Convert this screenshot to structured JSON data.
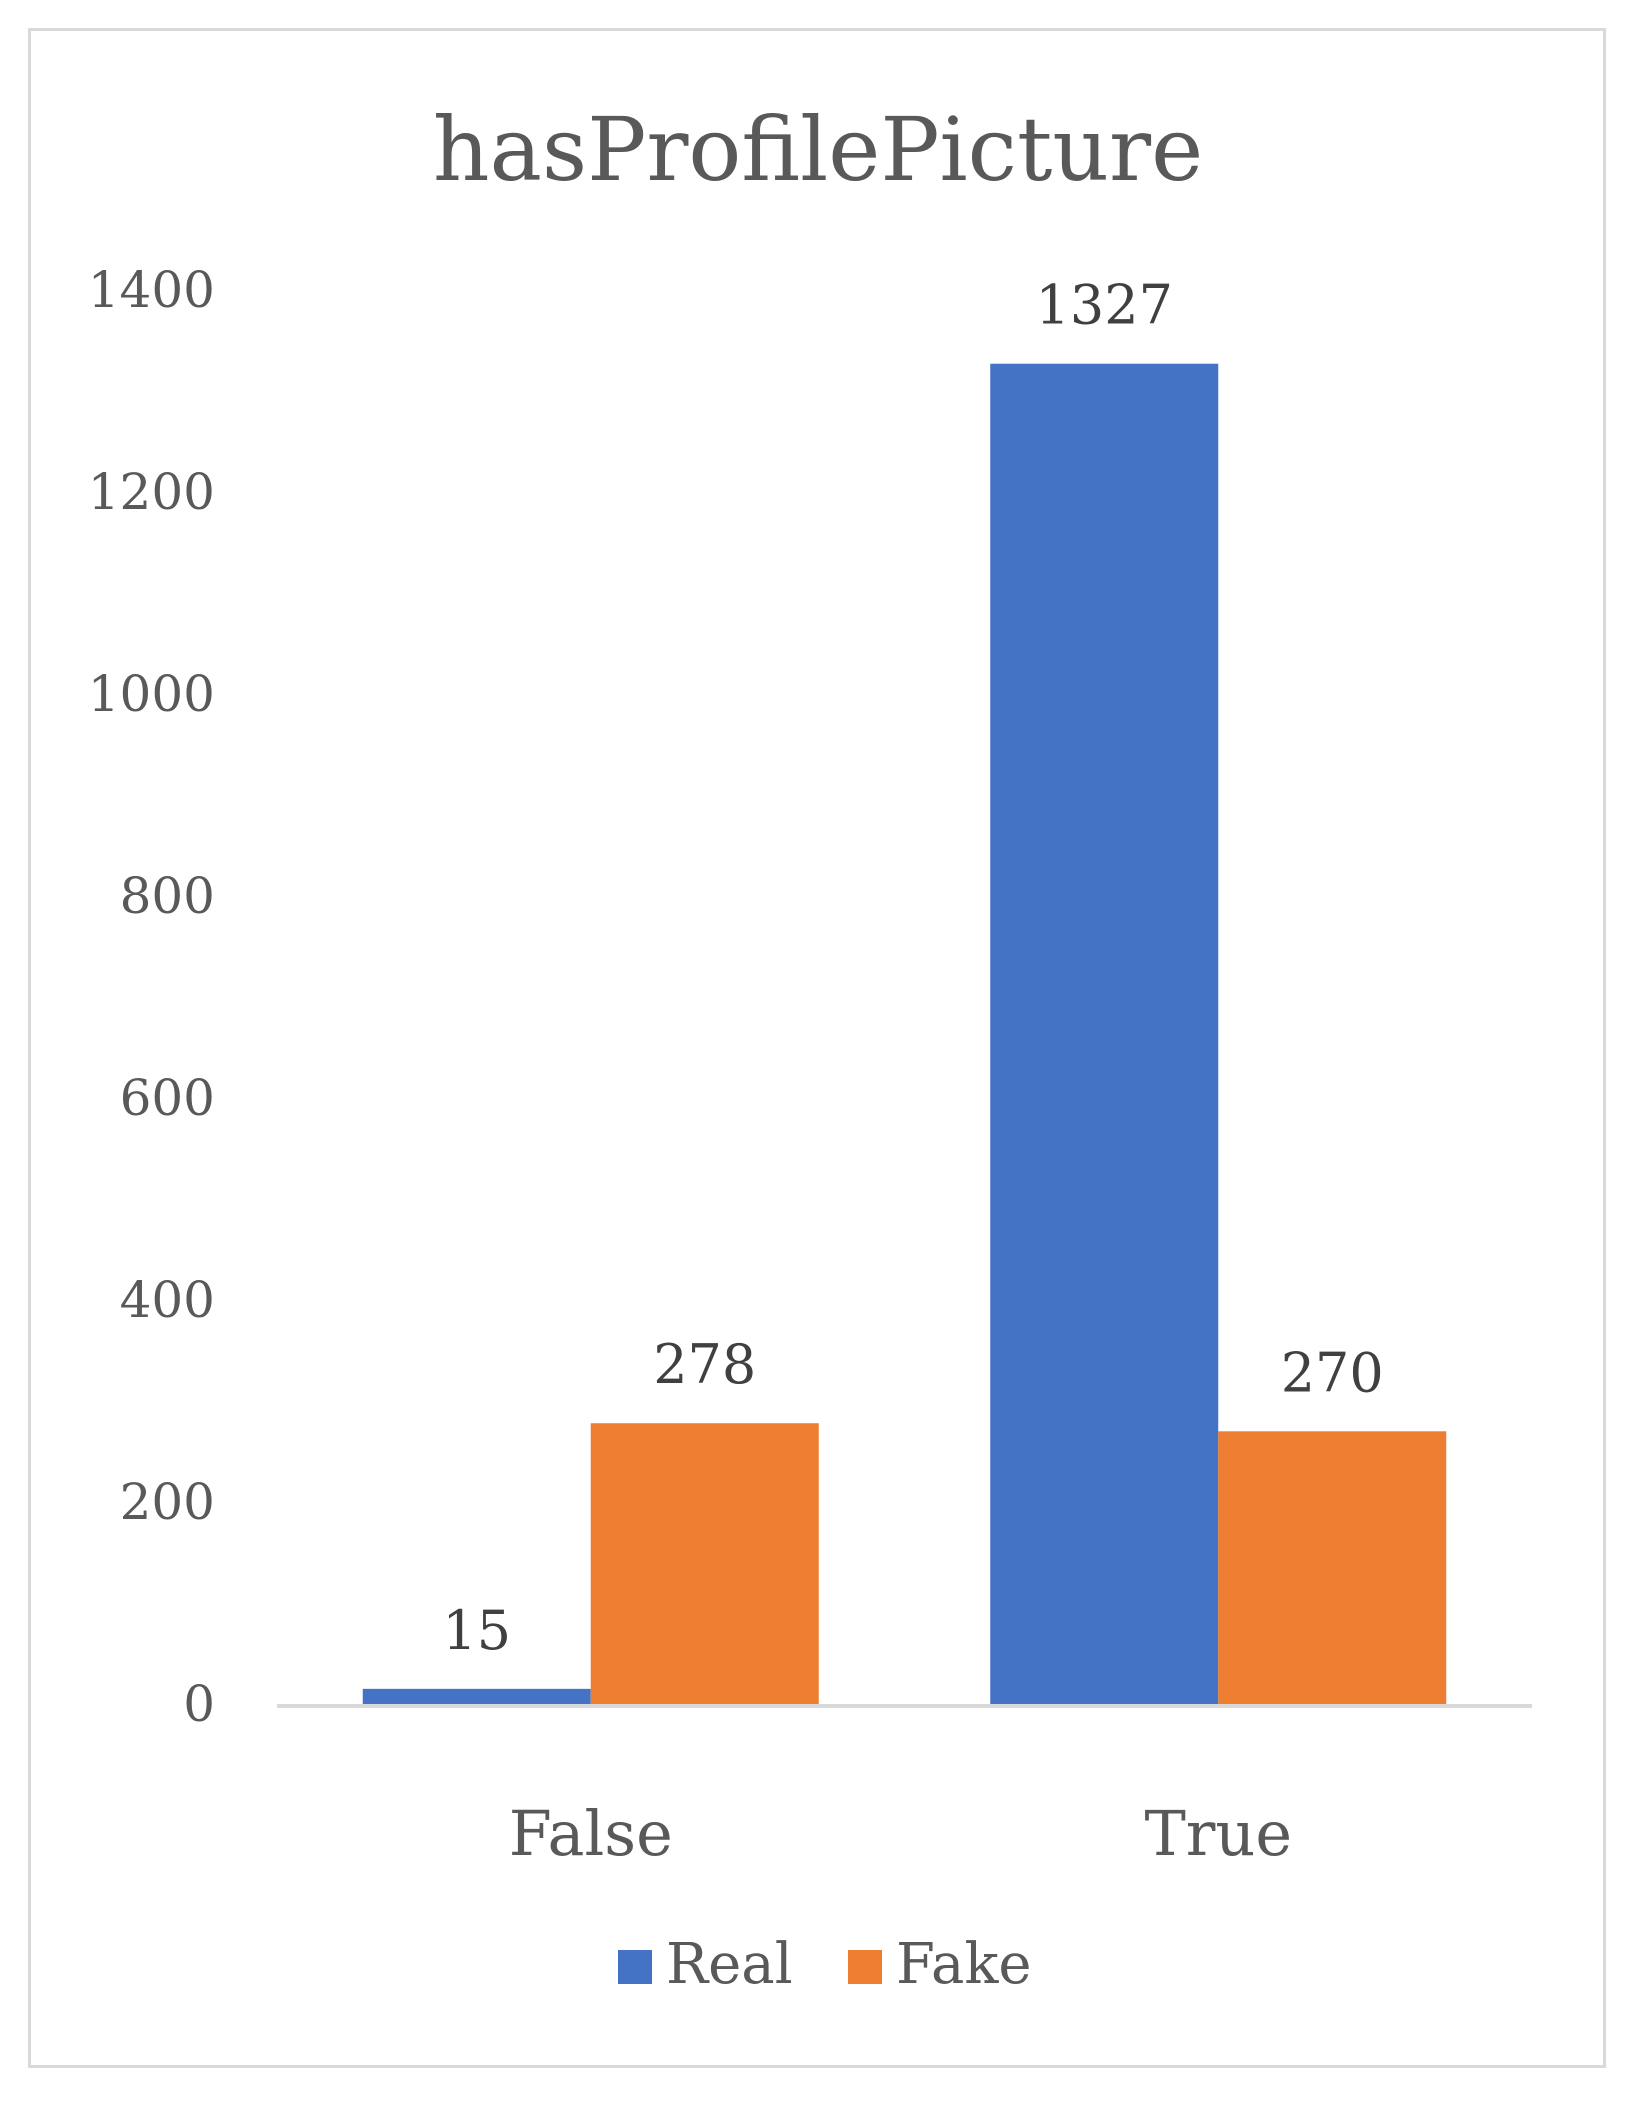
{
  "chart_data": {
    "type": "bar",
    "title": "hasProfilePicture",
    "categories": [
      "False",
      "True"
    ],
    "series": [
      {
        "name": "Real",
        "values": [
          15,
          1327
        ],
        "color": "#4472C4"
      },
      {
        "name": "Fake",
        "values": [
          278,
          270
        ],
        "color": "#ED7D31"
      }
    ],
    "ylim": [
      0,
      1400
    ],
    "yticks": [
      0,
      200,
      400,
      600,
      800,
      1000,
      1200,
      1400
    ],
    "data_labels": true,
    "grid": false,
    "legend": "bottom"
  }
}
